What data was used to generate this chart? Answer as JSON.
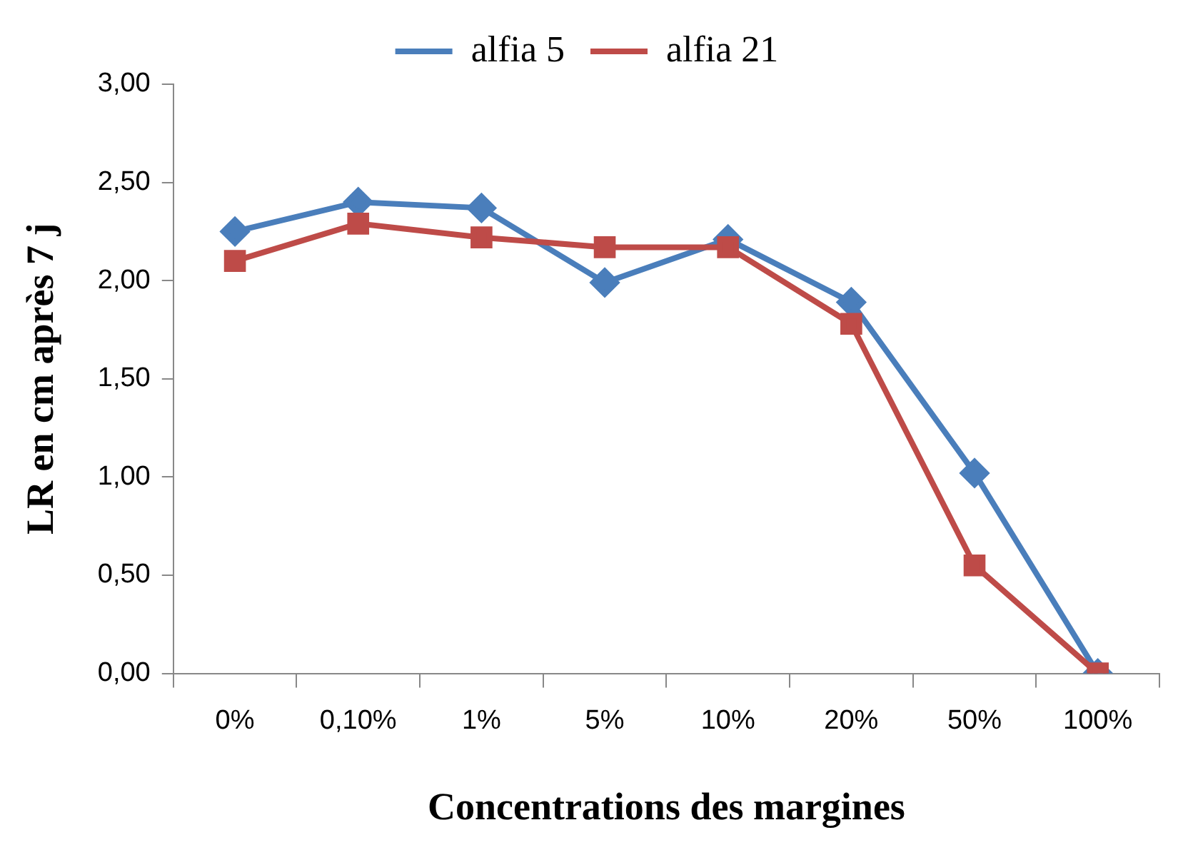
{
  "chart_data": {
    "type": "line",
    "xlabel": "Concentrations des margines",
    "ylabel": "LR en cm après 7 j",
    "categories": [
      "0%",
      "0,10%",
      "1%",
      "5%",
      "10%",
      "20%",
      "50%",
      "100%"
    ],
    "series": [
      {
        "name": "alfia 5",
        "color": "#4a7ebb",
        "marker": "diamond",
        "values": [
          2.25,
          2.4,
          2.37,
          1.99,
          2.21,
          1.89,
          1.02,
          0
        ]
      },
      {
        "name": "alfia 21",
        "color": "#be4b48",
        "marker": "square",
        "values": [
          2.1,
          2.29,
          2.22,
          2.17,
          2.17,
          1.78,
          0.55,
          0
        ]
      }
    ],
    "ylim": [
      0,
      3
    ],
    "yticks": [
      {
        "value": 0,
        "label": "0,00"
      },
      {
        "value": 0.5,
        "label": "0,50"
      },
      {
        "value": 1,
        "label": "1,00"
      },
      {
        "value": 1.5,
        "label": "1,50"
      },
      {
        "value": 2,
        "label": "2,00"
      },
      {
        "value": 2.5,
        "label": "2,50"
      },
      {
        "value": 3,
        "label": "3,00"
      }
    ],
    "grid": false,
    "legend": "top",
    "line_style": "solid"
  }
}
